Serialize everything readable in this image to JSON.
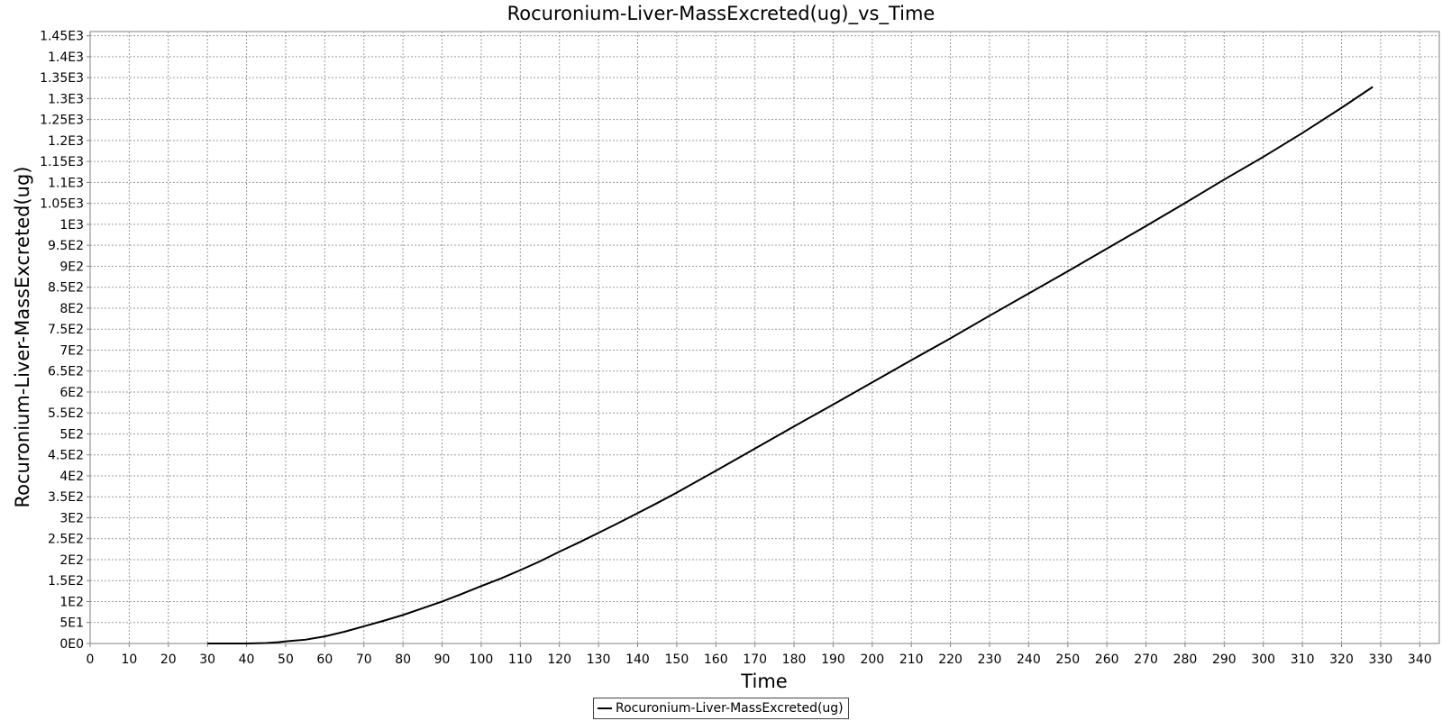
{
  "chart_data": {
    "type": "line",
    "title": "Rocuronium-Liver-MassExcreted(ug)_vs_Time",
    "xlabel": "Time",
    "ylabel": "Rocuronium-Liver-MassExcreted(ug)",
    "xlim": [
      0,
      345
    ],
    "ylim": [
      0,
      1460
    ],
    "x_ticks": [
      0,
      10,
      20,
      30,
      40,
      50,
      60,
      70,
      80,
      90,
      100,
      110,
      120,
      130,
      140,
      150,
      160,
      170,
      180,
      190,
      200,
      210,
      220,
      230,
      240,
      250,
      260,
      270,
      280,
      290,
      300,
      310,
      320,
      330,
      340
    ],
    "x_tick_labels": [
      "0",
      "10",
      "20",
      "30",
      "40",
      "50",
      "60",
      "70",
      "80",
      "90",
      "100",
      "110",
      "120",
      "130",
      "140",
      "150",
      "160",
      "170",
      "180",
      "190",
      "200",
      "210",
      "220",
      "230",
      "240",
      "250",
      "260",
      "270",
      "280",
      "290",
      "300",
      "310",
      "320",
      "330",
      "340"
    ],
    "y_ticks": [
      0,
      50,
      100,
      150,
      200,
      250,
      300,
      350,
      400,
      450,
      500,
      550,
      600,
      650,
      700,
      750,
      800,
      850,
      900,
      950,
      1000,
      1050,
      1100,
      1150,
      1200,
      1250,
      1300,
      1350,
      1400,
      1450
    ],
    "y_tick_labels": [
      "0E0",
      "5E1",
      "1E2",
      "1.5E2",
      "2E2",
      "2.5E2",
      "3E2",
      "3.5E2",
      "4E2",
      "4.5E2",
      "5E2",
      "5.5E2",
      "6E2",
      "6.5E2",
      "7E2",
      "7.5E2",
      "8E2",
      "8.5E2",
      "9E2",
      "9.5E2",
      "1E3",
      "1.05E3",
      "1.1E3",
      "1.15E3",
      "1.2E3",
      "1.25E3",
      "1.3E3",
      "1.35E3",
      "1.4E3",
      "1.45E3"
    ],
    "grid": true,
    "legend_position": "bottom-center",
    "series": [
      {
        "name": "Rocuronium-Liver-MassExcreted(ug)",
        "color": "#000000",
        "x": [
          30,
          35,
          40,
          45,
          48,
          50,
          55,
          60,
          65,
          70,
          75,
          80,
          85,
          90,
          95,
          100,
          105,
          110,
          115,
          120,
          125,
          130,
          135,
          140,
          145,
          150,
          160,
          170,
          180,
          190,
          200,
          210,
          220,
          230,
          240,
          250,
          260,
          270,
          280,
          290,
          300,
          310,
          320,
          328
        ],
        "y": [
          0,
          0,
          0,
          1,
          3,
          5,
          9,
          17,
          28,
          41,
          54,
          68,
          84,
          100,
          118,
          137,
          155,
          175,
          196,
          219,
          241,
          264,
          287,
          311,
          335,
          360,
          412,
          465,
          518,
          570,
          623,
          676,
          728,
          782,
          835,
          888,
          942,
          996,
          1051,
          1107,
          1161,
          1218,
          1278,
          1328
        ]
      }
    ]
  }
}
